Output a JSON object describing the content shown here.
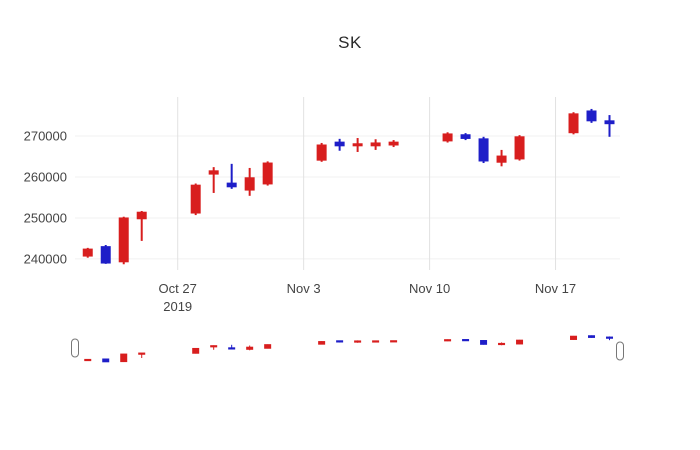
{
  "chart_data": {
    "type": "candlestick",
    "title": "SK",
    "legend": "none",
    "grid": "on",
    "increasing_color": "#d81e1e",
    "decreasing_color": "#1e1ec8",
    "gridline_color_vertical": "#e2e2e2",
    "gridline_color_horizontal": "#f0f0f0",
    "axis_text_color": "#444444",
    "y_ticks": [
      {
        "value": 240000,
        "label": "240000"
      },
      {
        "value": 250000,
        "label": "250000"
      },
      {
        "value": 260000,
        "label": "260000"
      },
      {
        "value": 270000,
        "label": "270000"
      }
    ],
    "x_ticks": [
      {
        "date": "2019-10-27",
        "lines": [
          "Oct 27",
          "2019"
        ]
      },
      {
        "date": "2019-11-03",
        "lines": [
          "Nov 3"
        ]
      },
      {
        "date": "2019-11-10",
        "lines": [
          "Nov 10"
        ]
      },
      {
        "date": "2019-11-17",
        "lines": [
          "Nov 17"
        ]
      }
    ],
    "x_range": [
      "2019-10-21T07:00:00Z",
      "2019-11-20T14:00:00Z"
    ],
    "y_range": [
      237300,
      280000
    ],
    "rangeslider": true,
    "candles": [
      {
        "date": "2019-10-22",
        "open": 240700,
        "high": 242700,
        "low": 240300,
        "close": 242400
      },
      {
        "date": "2019-10-23",
        "open": 243000,
        "high": 243400,
        "low": 238800,
        "close": 239000
      },
      {
        "date": "2019-10-24",
        "open": 239300,
        "high": 250300,
        "low": 238700,
        "close": 250000
      },
      {
        "date": "2019-10-25",
        "open": 249800,
        "high": 251700,
        "low": 244400,
        "close": 251400
      },
      {
        "date": "2019-10-28",
        "open": 251200,
        "high": 258400,
        "low": 250700,
        "close": 258000
      },
      {
        "date": "2019-10-29",
        "open": 260700,
        "high": 262400,
        "low": 256100,
        "close": 261500
      },
      {
        "date": "2019-10-30",
        "open": 258500,
        "high": 263200,
        "low": 257100,
        "close": 257600
      },
      {
        "date": "2019-10-31",
        "open": 256800,
        "high": 262200,
        "low": 255400,
        "close": 259800
      },
      {
        "date": "2019-11-01",
        "open": 258300,
        "high": 263800,
        "low": 257900,
        "close": 263400
      },
      {
        "date": "2019-11-04",
        "open": 264100,
        "high": 268300,
        "low": 263700,
        "close": 267800
      },
      {
        "date": "2019-11-05",
        "open": 268500,
        "high": 269300,
        "low": 266400,
        "close": 267600
      },
      {
        "date": "2019-11-06",
        "open": 267600,
        "high": 269500,
        "low": 266100,
        "close": 268100
      },
      {
        "date": "2019-11-07",
        "open": 267600,
        "high": 269200,
        "low": 266600,
        "close": 268300
      },
      {
        "date": "2019-11-08",
        "open": 267800,
        "high": 269000,
        "low": 267300,
        "close": 268500
      },
      {
        "date": "2019-11-11",
        "open": 268800,
        "high": 270900,
        "low": 268400,
        "close": 270500
      },
      {
        "date": "2019-11-12",
        "open": 270300,
        "high": 270700,
        "low": 269000,
        "close": 269400
      },
      {
        "date": "2019-11-13",
        "open": 269300,
        "high": 269800,
        "low": 263400,
        "close": 263900
      },
      {
        "date": "2019-11-14",
        "open": 263600,
        "high": 266600,
        "low": 262600,
        "close": 265100
      },
      {
        "date": "2019-11-15",
        "open": 264400,
        "high": 270200,
        "low": 264000,
        "close": 269800
      },
      {
        "date": "2019-11-18",
        "open": 270800,
        "high": 275800,
        "low": 270400,
        "close": 275400
      },
      {
        "date": "2019-11-19",
        "open": 276100,
        "high": 276600,
        "low": 273200,
        "close": 273700
      },
      {
        "date": "2019-11-20",
        "open": 273700,
        "high": 275100,
        "low": 269800,
        "close": 273000
      }
    ]
  }
}
